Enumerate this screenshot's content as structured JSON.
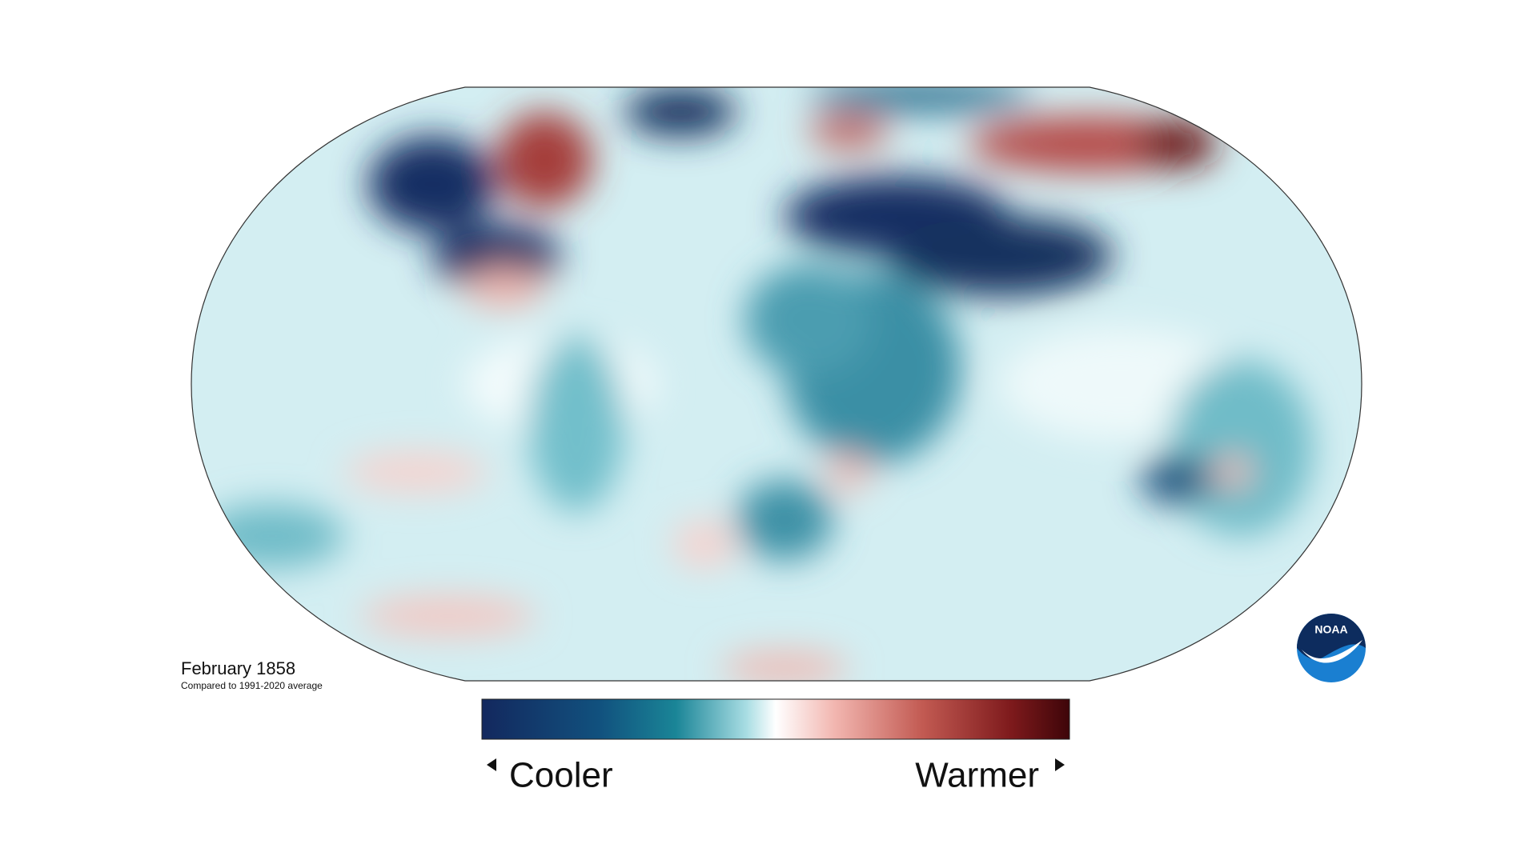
{
  "caption": {
    "title": "February 1858",
    "subtitle": "Compared to 1991-2020 average"
  },
  "legend": {
    "low": "Cooler",
    "high": "Warmer"
  },
  "logo": {
    "text": "NOAA"
  }
}
